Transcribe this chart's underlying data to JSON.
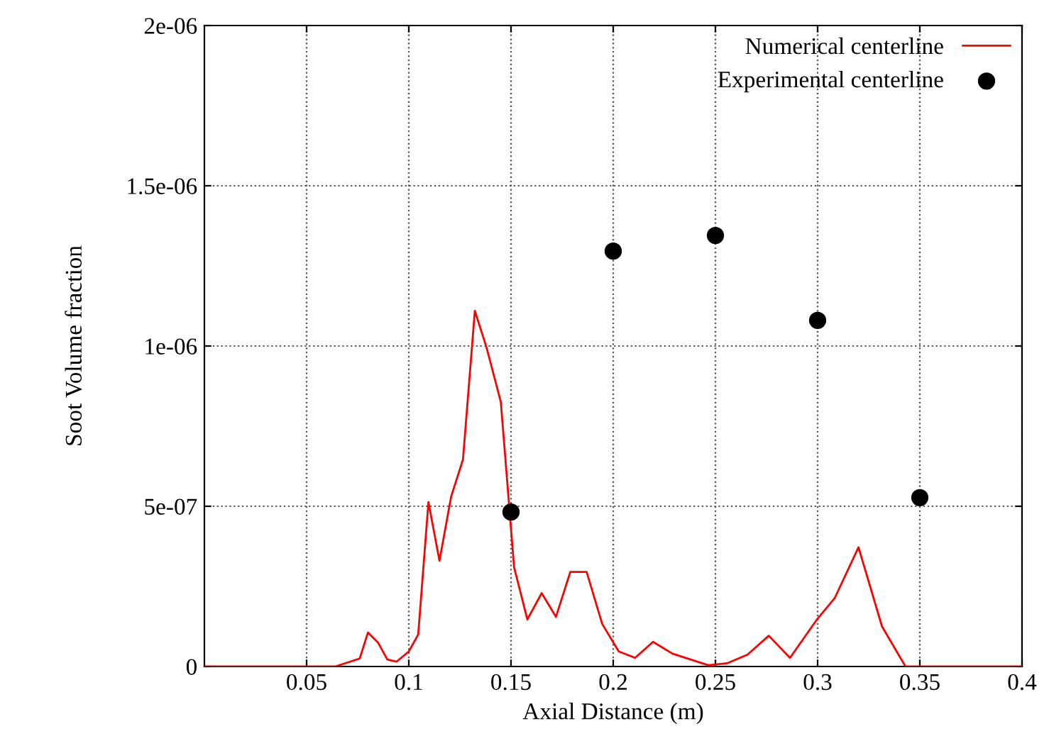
{
  "chart_data": {
    "type": "line",
    "xlabel": "Axial Distance (m)",
    "ylabel": "Soot Volume fraction",
    "xlim": [
      0,
      0.4
    ],
    "xticks": [
      0.05,
      0.1,
      0.15,
      0.2,
      0.25,
      0.3,
      0.35,
      0.4
    ],
    "ylim": [
      0,
      2e-06
    ],
    "yticks": [
      {
        "value": 0,
        "label": "0"
      },
      {
        "value": 5e-07,
        "label": "5e-07"
      },
      {
        "value": 1e-06,
        "label": "1e-06"
      },
      {
        "value": 1.5e-06,
        "label": "1.5e-06"
      },
      {
        "value": 2e-06,
        "label": "2e-06"
      }
    ],
    "grid": true,
    "legend": "top right",
    "series": [
      {
        "name": "Numerical centerline",
        "color": "#ff0000",
        "marker": "none",
        "x": [
          0,
          0.064,
          0.076,
          0.08,
          0.085,
          0.0895,
          0.094,
          0.1,
          0.1046,
          0.1096,
          0.115,
          0.1207,
          0.1265,
          0.1323,
          0.138,
          0.145,
          0.1515,
          0.158,
          0.165,
          0.172,
          0.179,
          0.187,
          0.1946,
          0.2027,
          0.2107,
          0.2195,
          0.229,
          0.2465,
          0.2557,
          0.2657,
          0.2761,
          0.2865,
          0.2997,
          0.3084,
          0.32,
          0.3315,
          0.343,
          0.4
        ],
        "values": [
          0,
          0,
          2.5e-08,
          1.06e-07,
          7.4e-08,
          2.2e-08,
          1.5e-08,
          4.7e-08,
          1e-07,
          5.13e-07,
          3.3e-07,
          5.3e-07,
          6.46e-07,
          1.11e-06,
          9.96e-07,
          8.26e-07,
          3.1e-07,
          1.47e-07,
          2.29e-07,
          1.55e-07,
          2.95e-07,
          2.95e-07,
          1.33e-07,
          4.7e-08,
          2.7e-08,
          7.7e-08,
          4e-08,
          4e-09,
          1e-08,
          3.7e-08,
          9.6e-08,
          2.7e-08,
          1.47e-07,
          2.14e-07,
          3.72e-07,
          1.25e-07,
          0,
          0
        ]
      },
      {
        "name": "Experimental centerline",
        "type": "scatter",
        "color": "#000000",
        "marker": "circle",
        "x": [
          0.15,
          0.2,
          0.25,
          0.3,
          0.35
        ],
        "values": [
          4.82e-07,
          1.296e-06,
          1.345e-06,
          1.08e-06,
          5.27e-07
        ]
      }
    ]
  }
}
